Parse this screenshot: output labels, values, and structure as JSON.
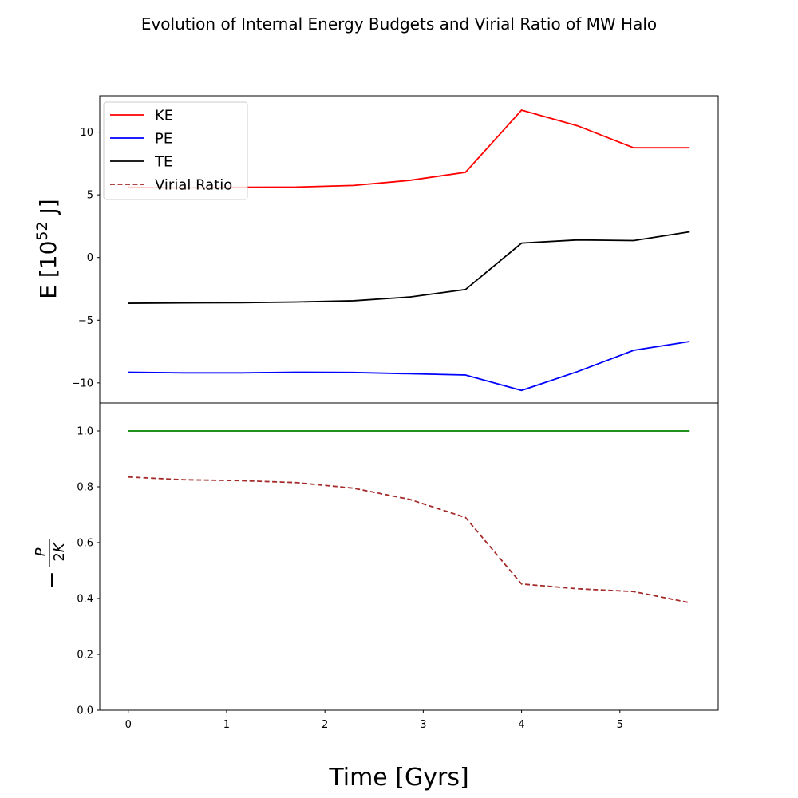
{
  "figure": {
    "title": "Evolution of Internal Energy Budgets and Virial Ratio of MW Halo",
    "xlabel": "Time [Gyrs]"
  },
  "chart_data": [
    {
      "type": "line",
      "panel": "top",
      "ylabel_base": "E [10",
      "ylabel_exp": "52",
      "ylabel_unit": " J]",
      "xlim": [
        -0.29,
        6.0
      ],
      "ylim": [
        -11.6,
        12.9
      ],
      "yticks": [
        -10,
        -5,
        0,
        5,
        10
      ],
      "ytick_labels": [
        "−10",
        "−5",
        "0",
        "5",
        "10"
      ],
      "grid": false,
      "legend_position": "top-left",
      "x": [
        0,
        0.57,
        1.14,
        1.71,
        2.29,
        2.86,
        3.43,
        4.0,
        4.57,
        5.14,
        5.71
      ],
      "series": [
        {
          "name": "KE",
          "color": "#ff0000",
          "style": "solid",
          "values": [
            5.6,
            5.55,
            5.6,
            5.62,
            5.75,
            6.15,
            6.8,
            11.75,
            10.5,
            8.75,
            8.75
          ]
        },
        {
          "name": "PE",
          "color": "#0000ff",
          "style": "solid",
          "values": [
            -9.15,
            -9.2,
            -9.2,
            -9.15,
            -9.17,
            -9.27,
            -9.37,
            -10.6,
            -9.1,
            -7.4,
            -6.7
          ]
        },
        {
          "name": "TE",
          "color": "#000000",
          "style": "solid",
          "values": [
            -3.65,
            -3.62,
            -3.6,
            -3.55,
            -3.45,
            -3.15,
            -2.55,
            1.15,
            1.4,
            1.35,
            2.05
          ]
        },
        {
          "name": "Virial Ratio",
          "color": "#a52a2a",
          "style": "dashed",
          "legend_only": true
        }
      ]
    },
    {
      "type": "line",
      "panel": "bottom",
      "ylabel": "−P/2K",
      "xlim": [
        -0.29,
        6.0
      ],
      "ylim": [
        0.0,
        1.1
      ],
      "yticks": [
        0.0,
        0.2,
        0.4,
        0.6,
        0.8,
        1.0
      ],
      "ytick_labels": [
        "0.0",
        "0.2",
        "0.4",
        "0.6",
        "0.8",
        "1.0"
      ],
      "xticks": [
        0,
        1,
        2,
        3,
        4,
        5
      ],
      "xtick_labels": [
        "0",
        "1",
        "2",
        "3",
        "4",
        "5"
      ],
      "grid": false,
      "x": [
        0,
        0.57,
        1.14,
        1.71,
        2.29,
        2.86,
        3.43,
        4.0,
        4.57,
        5.14,
        5.71
      ],
      "series": [
        {
          "color": "#008000",
          "style": "solid",
          "values": [
            1.0,
            1.0,
            1.0,
            1.0,
            1.0,
            1.0,
            1.0,
            1.0,
            1.0,
            1.0,
            1.0
          ]
        },
        {
          "name": "Virial Ratio",
          "color": "#a52a2a",
          "style": "dashed",
          "values": [
            0.835,
            0.825,
            0.822,
            0.815,
            0.795,
            0.755,
            0.69,
            0.452,
            0.435,
            0.425,
            0.385
          ]
        }
      ]
    }
  ]
}
